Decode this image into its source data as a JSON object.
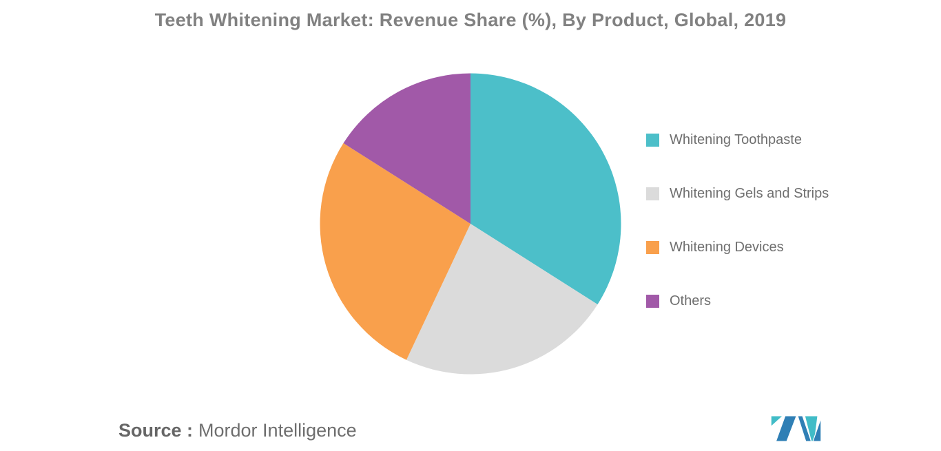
{
  "title": "Teeth Whitening Market: Revenue Share (%), By Product, Global, 2019",
  "source": {
    "prefix": "Source :",
    "text": "Mordor Intelligence"
  },
  "logo": {
    "name": "mordor-intelligence-logo",
    "colors": {
      "blue": "#2f7fb5",
      "teal": "#41bcc7"
    }
  },
  "chart_data": {
    "type": "pie",
    "title": "Teeth Whitening Market: Revenue Share (%), By Product, Global, 2019",
    "categories": [
      "Whitening Toothpaste",
      "Whitening Gels and Strips",
      "Whitening Devices",
      "Others"
    ],
    "values": [
      34,
      23,
      27,
      16
    ],
    "unit": "%",
    "colors": [
      "#4cbfc9",
      "#dbdbdb",
      "#f9a04c",
      "#a159a8"
    ],
    "start_angle_deg": 0,
    "direction": "clockwise",
    "legend_position": "right",
    "data_labels_shown": false,
    "grid": false
  }
}
